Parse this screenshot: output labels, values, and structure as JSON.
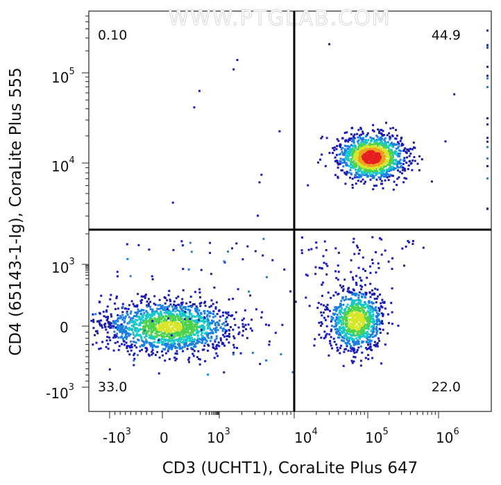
{
  "chart_data": {
    "type": "scatter",
    "subtype": "flow-cytometry-density-dot-plot",
    "watermark": "WWW.PTGLAB.COM",
    "xlabel": "CD3 (UCHT1), CoraLite Plus 647",
    "ylabel": "CD4 (65143-1-Ig), CoraLite Plus 555",
    "x_scale": "biexponential",
    "y_scale": "biexponential",
    "x_ticks": [
      {
        "base": "-10",
        "exp": "3",
        "value": -1000
      },
      {
        "base": "0",
        "exp": "",
        "value": 0
      },
      {
        "base": "10",
        "exp": "3",
        "value": 1000
      },
      {
        "base": "10",
        "exp": "4",
        "value": 10000
      },
      {
        "base": "10",
        "exp": "5",
        "value": 100000
      },
      {
        "base": "10",
        "exp": "6",
        "value": 1000000
      }
    ],
    "y_ticks": [
      {
        "base": "-10",
        "exp": "3",
        "value": -1000
      },
      {
        "base": "0",
        "exp": "",
        "value": 0
      },
      {
        "base": "10",
        "exp": "3",
        "value": 1000
      },
      {
        "base": "10",
        "exp": "4",
        "value": 10000
      },
      {
        "base": "10",
        "exp": "5",
        "value": 100000
      }
    ],
    "gates": {
      "x": 9000,
      "y": 2000
    },
    "quadrants": [
      {
        "name": "upper-left",
        "value": "0.10"
      },
      {
        "name": "upper-right",
        "value": "44.9"
      },
      {
        "name": "lower-left",
        "value": "33.0"
      },
      {
        "name": "lower-right",
        "value": "22.0"
      }
    ],
    "populations": [
      {
        "name": "CD3-CD4-",
        "center_x": 0,
        "center_y": 0,
        "share_percent": 33.0
      },
      {
        "name": "CD3+CD4+",
        "center_x": 100000,
        "center_y": 13000,
        "share_percent": 44.9
      },
      {
        "name": "CD3+CD4-",
        "center_x": 60000,
        "center_y": 0,
        "share_percent": 22.0
      }
    ],
    "density_colors": [
      "#1a1ab4",
      "#1a7fe0",
      "#18c8c8",
      "#4cd24c",
      "#d8e628",
      "#f0a020",
      "#e61e1e"
    ]
  }
}
